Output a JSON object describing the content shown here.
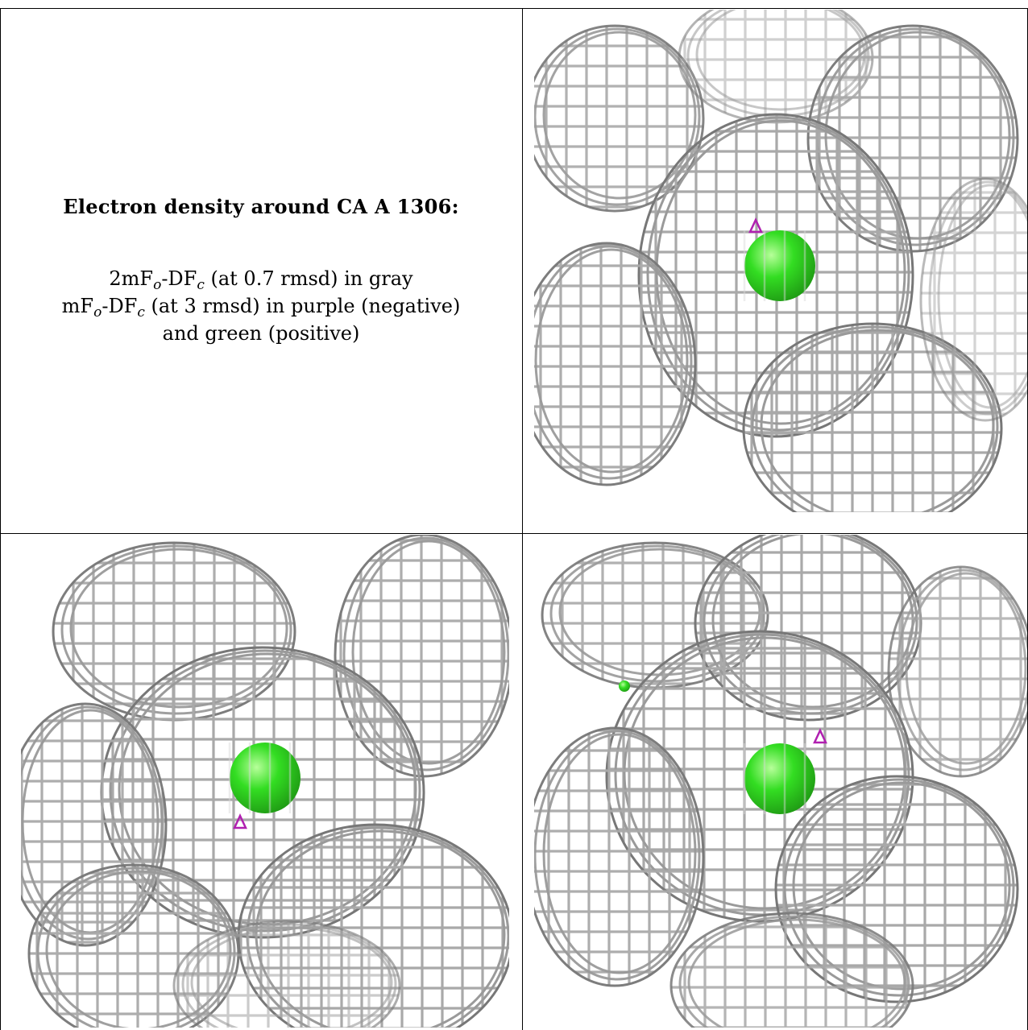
{
  "legend": {
    "title": "Electron density around CA A 1306:",
    "line1_a": "2mF",
    "line1_sub1": "o",
    "line1_b": "-DF",
    "line1_sub2": "c",
    "line1_c": " (at 0.7 rmsd) in gray",
    "line2_a": "mF",
    "line2_sub1": "o",
    "line2_b": "-DF",
    "line2_sub2": "c",
    "line2_c": " (at 3 rmsd) in purple (negative)",
    "line3": "and green (positive)"
  },
  "colors": {
    "mesh_gray": "#a9a9a9",
    "negative_purple": "#b020b0",
    "positive_green": "#33dd22",
    "border": "#000000"
  },
  "panels": [
    {
      "name": "view-top-right"
    },
    {
      "name": "view-bottom-left"
    },
    {
      "name": "view-bottom-right"
    }
  ]
}
